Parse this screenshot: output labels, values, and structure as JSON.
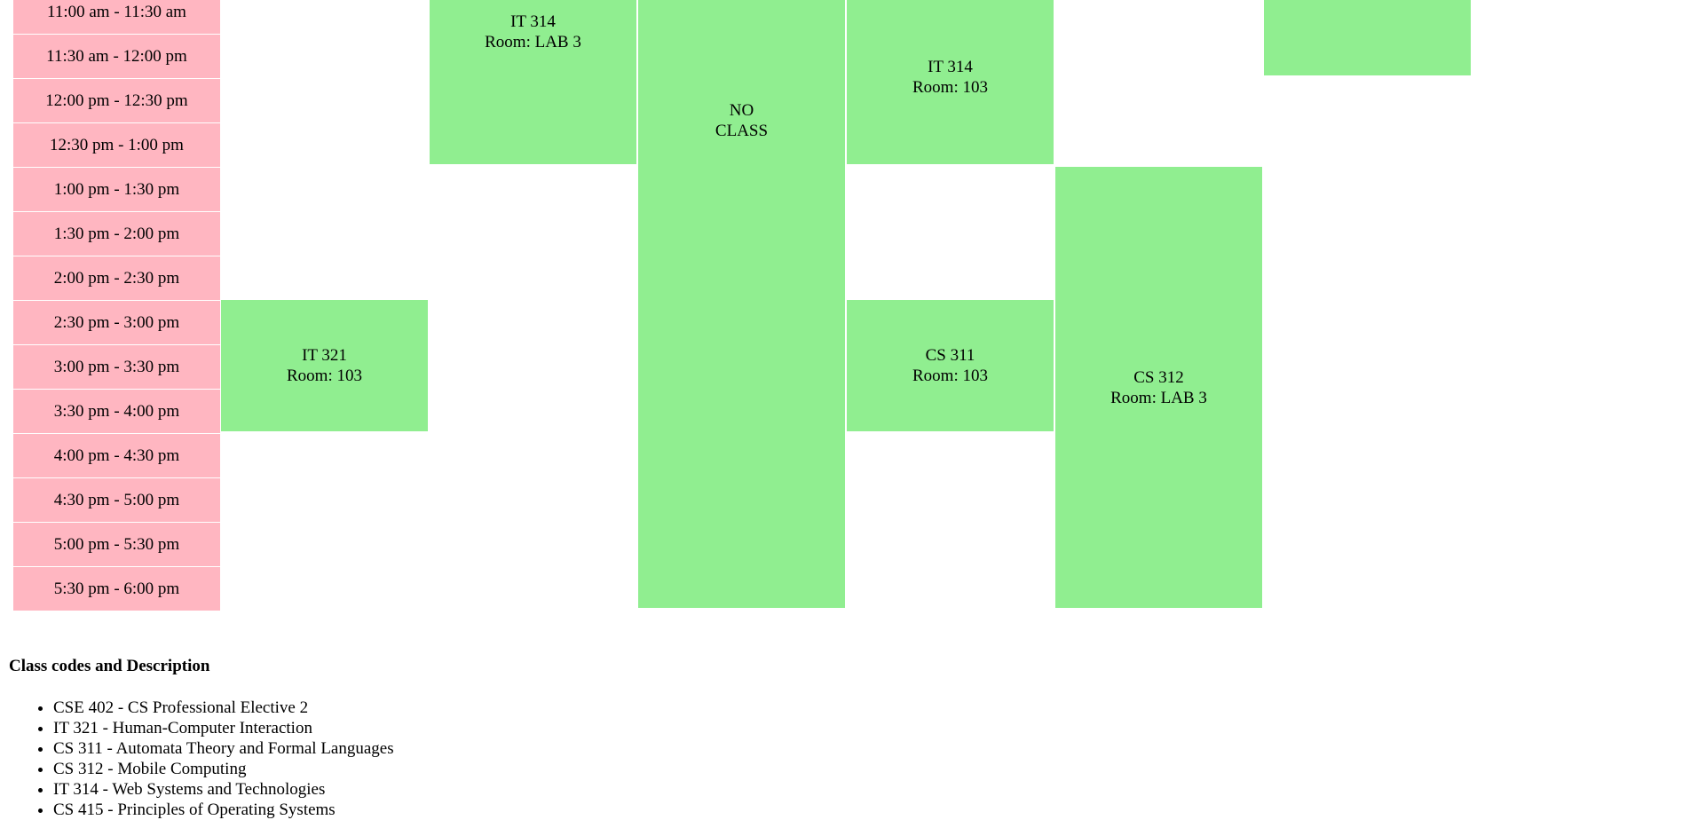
{
  "time_slots": [
    "11:00 am - 11:30 am",
    "11:30 am - 12:00 pm",
    "12:00 pm - 12:30 pm",
    "12:30 pm - 1:00 pm",
    "1:00 pm - 1:30 pm",
    "1:30 pm - 2:00 pm",
    "2:00 pm - 2:30 pm",
    "2:30 pm - 3:00 pm",
    "3:00 pm - 3:30 pm",
    "3:30 pm - 4:00 pm",
    "4:00 pm - 4:30 pm",
    "4:30 pm - 5:00 pm",
    "5:00 pm - 5:30 pm",
    "5:30 pm - 6:00 pm"
  ],
  "classes": [
    {
      "code": "IT 314",
      "room": "Room: LAB 3"
    },
    {
      "line1": "NO",
      "line2": "CLASS"
    },
    {
      "code": "IT 314",
      "room": "Room: 103"
    },
    {
      "code": "IT 321",
      "room": "Room: 103"
    },
    {
      "code": "CS 311",
      "room": "Room: 103"
    },
    {
      "code": "CS 312",
      "room": "Room: LAB 3"
    }
  ],
  "legend": {
    "title": "Class codes and Description",
    "items": [
      "CSE 402 - CS Professional Elective 2",
      "IT 321 - Human-Computer Interaction",
      "CS 311 - Automata Theory and Formal Languages",
      "CS 312 - Mobile Computing",
      "IT 314 - Web Systems and Technologies",
      "CS 415 - Principles of Operating Systems"
    ]
  },
  "colors": {
    "time_cell": "#ffb6c1",
    "class_block": "#90ee90"
  }
}
